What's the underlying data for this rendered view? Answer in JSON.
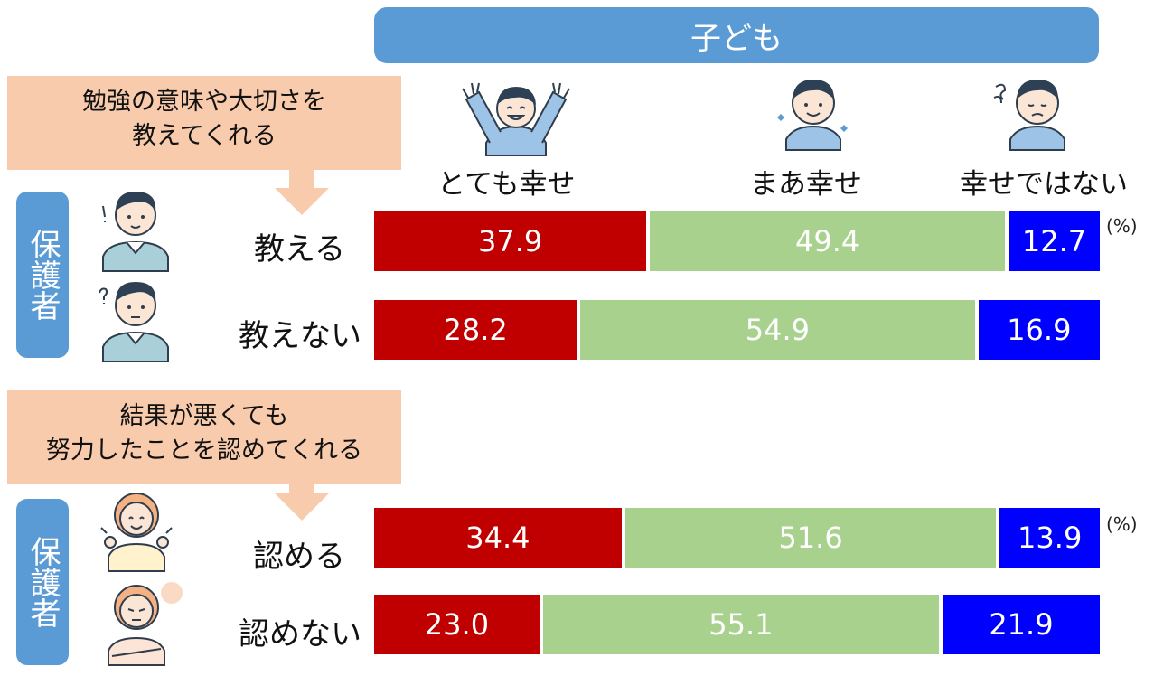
{
  "header": {
    "title": "子ども"
  },
  "columns": [
    {
      "key": "very_happy",
      "label": "とても幸せ",
      "icon": "very-happy-child-icon"
    },
    {
      "key": "fairly_happy",
      "label": "まあ幸せ",
      "icon": "smiling-child-icon"
    },
    {
      "key": "not_happy",
      "label": "幸せではない",
      "icon": "sad-child-icon"
    }
  ],
  "guardian_label": "保護者",
  "unit": "(%)",
  "colors": {
    "very_happy": "#c00000",
    "fairly_happy": "#a9d18e",
    "not_happy": "#0000ff",
    "header": "#5b9bd5",
    "callout": "#f8cbad"
  },
  "groups": [
    {
      "question": "勉強の意味や大切さを教えてくれる",
      "question_lines": [
        "勉強の意味や大切さを",
        "教えてくれる"
      ],
      "rows": [
        {
          "label": "教える",
          "icon": "father-exclaim-icon"
        },
        {
          "label": "教えない",
          "icon": "father-question-icon"
        }
      ]
    },
    {
      "question": "結果が悪くても努力したことを認めてくれる",
      "question_lines": [
        "結果が悪くても",
        "努力したことを認めてくれる"
      ],
      "rows": [
        {
          "label": "認める",
          "icon": "mother-cheering-icon"
        },
        {
          "label": "認めない",
          "icon": "mother-arms-crossed-icon"
        }
      ]
    }
  ],
  "chart_data": {
    "type": "bar",
    "orientation": "horizontal",
    "stacked": true,
    "title": "子ども",
    "unit": "%",
    "categories": [
      "教える",
      "教えない",
      "認める",
      "認めない"
    ],
    "series": [
      {
        "name": "とても幸せ",
        "values": [
          37.9,
          28.2,
          34.4,
          23.0
        ]
      },
      {
        "name": "まあ幸せ",
        "values": [
          49.4,
          54.9,
          51.6,
          55.1
        ]
      },
      {
        "name": "幸せではない",
        "values": [
          12.7,
          16.9,
          13.9,
          21.9
        ]
      }
    ],
    "value_labels": [
      [
        "37.9",
        "49.4",
        "12.7"
      ],
      [
        "28.2",
        "54.9",
        "16.9"
      ],
      [
        "34.4",
        "51.6",
        "13.9"
      ],
      [
        "23.0",
        "55.1",
        "21.9"
      ]
    ]
  }
}
